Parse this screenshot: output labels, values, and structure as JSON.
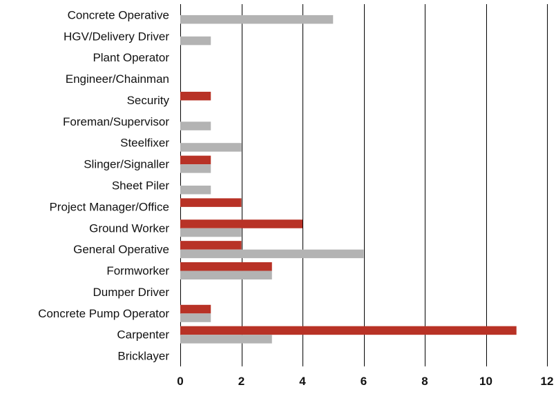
{
  "chart_data": {
    "type": "bar",
    "orientation": "horizontal",
    "categories": [
      "Concrete Operative",
      "HGV/Delivery Driver",
      "Plant Operator",
      "Engineer/Chainman",
      "Security",
      "Foreman/Supervisor",
      "Steelfixer",
      "Slinger/Signaller",
      "Sheet Piler",
      "Project Manager/Office",
      "Ground Worker",
      "General Operative",
      "Formworker",
      "Dumper Driver",
      "Concrete Pump Operator",
      "Carpenter",
      "Bricklayer"
    ],
    "series": [
      {
        "color": "#b83226",
        "values": [
          0,
          0,
          0,
          0,
          1,
          0,
          0,
          1,
          0,
          2,
          4,
          2,
          3,
          0,
          1,
          11,
          0
        ]
      },
      {
        "color": "#b3b3b3",
        "values": [
          5,
          1,
          0,
          0,
          0,
          1,
          2,
          1,
          1,
          0,
          2,
          6,
          3,
          0,
          1,
          3,
          0
        ]
      }
    ],
    "xlim": [
      0,
      12
    ],
    "x_ticks": [
      "0",
      "2",
      "4",
      "6",
      "8",
      "10",
      "12"
    ],
    "grid": "vertical",
    "legend": "none",
    "title": "",
    "xlabel": "",
    "ylabel": ""
  }
}
